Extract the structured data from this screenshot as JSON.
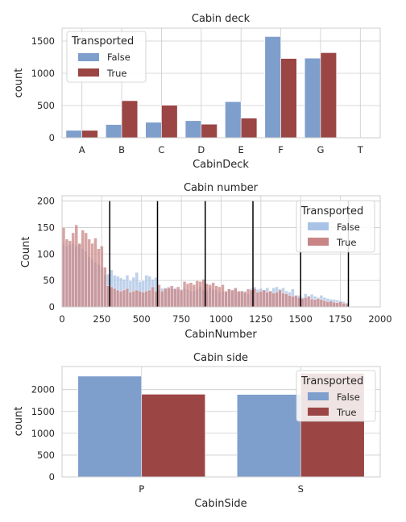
{
  "colors": {
    "false_bar": "#7e9ecc",
    "true_bar": "#9b4545",
    "false_hist": "#a9c3e6",
    "true_hist": "#c98585",
    "vline": "#000000"
  },
  "chart_data": [
    {
      "type": "bar",
      "title": "Cabin deck",
      "xlabel": "CabinDeck",
      "ylabel": "count",
      "categories": [
        "A",
        "B",
        "C",
        "D",
        "E",
        "F",
        "G",
        "T"
      ],
      "ylim": [
        0,
        1700
      ],
      "yticks": [
        0,
        500,
        1000,
        1500
      ],
      "series": [
        {
          "name": "False",
          "values": [
            115,
            205,
            240,
            265,
            560,
            1570,
            1235,
            4
          ]
        },
        {
          "name": "True",
          "values": [
            115,
            575,
            505,
            210,
            305,
            1230,
            1320,
            1
          ]
        }
      ],
      "legend": {
        "title": "Transported",
        "placement": "top-left"
      },
      "grid": true
    },
    {
      "type": "bar",
      "title": "Cabin number",
      "xlabel": "CabinNumber",
      "ylabel": "Count",
      "xlim": [
        0,
        2000
      ],
      "ylim": [
        0,
        210
      ],
      "xticks": [
        0,
        250,
        500,
        750,
        1000,
        1250,
        1500,
        1750,
        2000
      ],
      "yticks": [
        0,
        50,
        100,
        150,
        200
      ],
      "bin_width": 20,
      "bin_start": 0,
      "series": [
        {
          "name": "False",
          "values": [
            120,
            115,
            118,
            120,
            115,
            118,
            110,
            105,
            95,
            90,
            85,
            80,
            75,
            60,
            62,
            70,
            60,
            58,
            55,
            52,
            60,
            50,
            56,
            65,
            48,
            50,
            60,
            58,
            52,
            56,
            32,
            35,
            36,
            38,
            34,
            36,
            32,
            34,
            35,
            33,
            30,
            30,
            34,
            38,
            32,
            30,
            36,
            33,
            32,
            28,
            30,
            28,
            34,
            30,
            33,
            28,
            30,
            30,
            25,
            35,
            38,
            33,
            35,
            32,
            36,
            30,
            36,
            38,
            34,
            36,
            30,
            28,
            34,
            20,
            22,
            18,
            25,
            20,
            24,
            20,
            18,
            22,
            18,
            16,
            15,
            14,
            13,
            12,
            10,
            8
          ]
        },
        {
          "name": "True",
          "values": [
            150,
            128,
            125,
            140,
            155,
            120,
            145,
            140,
            128,
            120,
            130,
            110,
            115,
            75,
            40,
            38,
            35,
            32,
            30,
            32,
            35,
            28,
            30,
            32,
            30,
            28,
            30,
            32,
            38,
            30,
            42,
            30,
            35,
            36,
            40,
            34,
            38,
            32,
            48,
            44,
            46,
            42,
            50,
            48,
            52,
            44,
            42,
            46,
            40,
            38,
            42,
            30,
            34,
            32,
            36,
            30,
            30,
            28,
            34,
            32,
            35,
            28,
            30,
            32,
            28,
            30,
            26,
            28,
            32,
            26,
            25,
            22,
            20,
            22,
            18,
            16,
            18,
            20,
            15,
            14,
            16,
            14,
            12,
            10,
            11,
            9,
            8,
            10,
            7,
            6
          ]
        }
      ],
      "vlines": [
        300,
        600,
        900,
        1200,
        1500,
        1800
      ],
      "legend": {
        "title": "Transported",
        "placement": "top-right"
      },
      "grid": true
    },
    {
      "type": "bar",
      "title": "Cabin side",
      "xlabel": "CabinSide",
      "ylabel": "count",
      "categories": [
        "P",
        "S"
      ],
      "ylim": [
        0,
        2530
      ],
      "yticks": [
        0,
        500,
        1000,
        1500,
        2000
      ],
      "series": [
        {
          "name": "False",
          "values": [
            2310,
            1890
          ]
        },
        {
          "name": "True",
          "values": [
            1895,
            2375
          ]
        }
      ],
      "legend": {
        "title": "Transported",
        "placement": "top-right"
      },
      "grid": true
    }
  ]
}
